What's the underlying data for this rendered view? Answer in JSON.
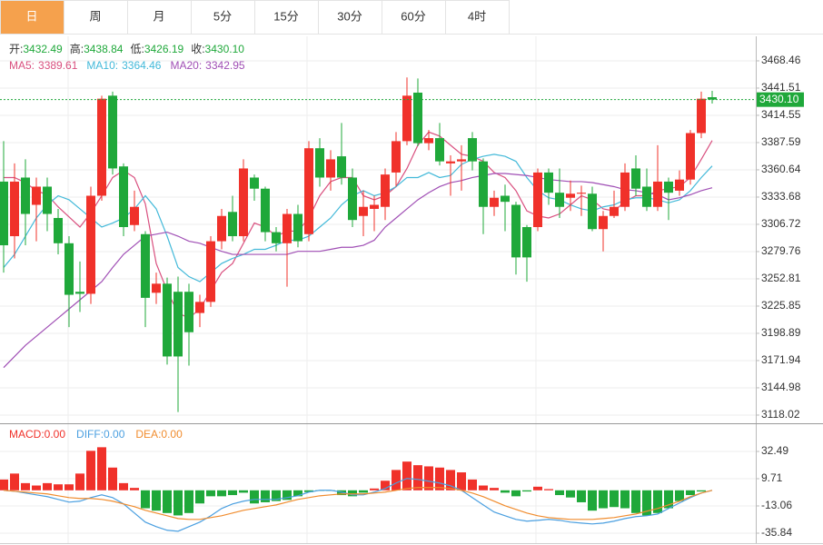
{
  "tabs": [
    "日",
    "周",
    "月",
    "5分",
    "15分",
    "30分",
    "60分",
    "4时"
  ],
  "active_tab": 0,
  "chart_data": [
    {
      "type": "candlestick",
      "legend": [
        {
          "label": "开:",
          "value": "3432.49"
        },
        {
          "label": "高:",
          "value": "3438.84"
        },
        {
          "label": "低:",
          "value": "3426.19"
        },
        {
          "label": "收:",
          "value": "3430.10"
        }
      ],
      "legend_value_color": "#1fa83a",
      "up_color": "#f0312a",
      "down_color": "#1fa83a",
      "open": [
        3349,
        3295,
        3353,
        3326,
        3344,
        3313,
        3288,
        3240,
        3238,
        3335,
        3434,
        3364,
        3306,
        3297,
        3239,
        3248,
        3240,
        3240,
        3219,
        3230,
        3290,
        3319,
        3295,
        3353,
        3342,
        3299,
        3288,
        3317,
        3297,
        3382,
        3353,
        3374,
        3353,
        3315,
        3322,
        3324,
        3358,
        3389,
        3437,
        3387,
        3392,
        3367,
        3369,
        3392,
        3369,
        3324,
        3335,
        3326,
        3304,
        3304,
        3358,
        3338,
        3333,
        3337,
        3337,
        3302,
        3315,
        3324,
        3362,
        3344,
        3324,
        3349,
        3340,
        3351,
        3397,
        3432.49
      ],
      "high": [
        3389,
        3367,
        3371,
        3353,
        3353,
        3322,
        3295,
        3270,
        3344,
        3434,
        3438,
        3367,
        3340,
        3300,
        3259,
        3254,
        3255,
        3248,
        3237,
        3295,
        3322,
        3335,
        3371,
        3356,
        3344,
        3304,
        3322,
        3326,
        3389,
        3392,
        3380,
        3407,
        3362,
        3340,
        3335,
        3362,
        3398,
        3452,
        3451,
        3400,
        3407,
        3375,
        3385,
        3398,
        3372,
        3340,
        3346,
        3329,
        3306,
        3362,
        3362,
        3362,
        3350,
        3345,
        3344,
        3320,
        3340,
        3367,
        3375,
        3362,
        3385,
        3353,
        3360,
        3400,
        3438,
        3438.84
      ],
      "low": [
        3259,
        3273,
        3286,
        3290,
        3300,
        3277,
        3205,
        3220,
        3228,
        3330,
        3356,
        3295,
        3300,
        3205,
        3228,
        3168,
        3121,
        3167,
        3205,
        3225,
        3282,
        3290,
        3290,
        3330,
        3290,
        3280,
        3245,
        3284,
        3290,
        3344,
        3340,
        3346,
        3304,
        3295,
        3300,
        3311,
        3344,
        3385,
        3384,
        3380,
        3365,
        3335,
        3340,
        3360,
        3297,
        3315,
        3300,
        3257,
        3250,
        3300,
        3326,
        3313,
        3320,
        3315,
        3300,
        3280,
        3313,
        3320,
        3335,
        3320,
        3320,
        3311,
        3335,
        3346,
        3392,
        3426.19
      ],
      "close": [
        3286,
        3349,
        3317,
        3344,
        3317,
        3288,
        3237,
        3238,
        3335,
        3431,
        3362,
        3304,
        3324,
        3234,
        3248,
        3176,
        3176,
        3200,
        3230,
        3290,
        3315,
        3295,
        3362,
        3342,
        3299,
        3288,
        3317,
        3290,
        3382,
        3353,
        3371,
        3353,
        3311,
        3324,
        3326,
        3356,
        3389,
        3434,
        3387,
        3392,
        3369,
        3369,
        3371,
        3369,
        3324,
        3333,
        3329,
        3274,
        3274,
        3358,
        3338,
        3324,
        3337,
        3338,
        3302,
        3315,
        3324,
        3358,
        3342,
        3324,
        3349,
        3338,
        3351,
        3397,
        3431,
        3430.1
      ],
      "series": [
        {
          "name": "MA5:",
          "color": "#d9507f",
          "value_label": "3389.61",
          "values": [
            3353,
            3353,
            3348,
            3340,
            3336,
            3324,
            3314,
            3304,
            3318,
            3335,
            3353,
            3360,
            3353,
            3327,
            3268,
            3241,
            3219,
            3214,
            3223,
            3241,
            3259,
            3268,
            3288,
            3308,
            3304,
            3295,
            3300,
            3300,
            3313,
            3335,
            3349,
            3353,
            3353,
            3335,
            3331,
            3335,
            3344,
            3362,
            3385,
            3398,
            3394,
            3385,
            3376,
            3374,
            3369,
            3358,
            3353,
            3340,
            3320,
            3315,
            3313,
            3317,
            3326,
            3335,
            3331,
            3322,
            3320,
            3329,
            3335,
            3335,
            3340,
            3342,
            3344,
            3353,
            3371,
            3389.61
          ]
        },
        {
          "name": "MA10:",
          "color": "#43b9d9",
          "value_label": "3364.46",
          "values": [
            3264,
            3277,
            3295,
            3313,
            3326,
            3335,
            3331,
            3322,
            3313,
            3304,
            3308,
            3313,
            3322,
            3335,
            3322,
            3295,
            3264,
            3255,
            3250,
            3259,
            3268,
            3273,
            3277,
            3282,
            3282,
            3286,
            3291,
            3291,
            3295,
            3304,
            3313,
            3326,
            3335,
            3340,
            3335,
            3338,
            3344,
            3353,
            3353,
            3358,
            3353,
            3355,
            3366,
            3371,
            3374,
            3376,
            3374,
            3369,
            3353,
            3340,
            3333,
            3331,
            3326,
            3322,
            3320,
            3324,
            3326,
            3331,
            3333,
            3333,
            3331,
            3328,
            3331,
            3340,
            3353,
            3364.46
          ]
        },
        {
          "name": "MA20:",
          "color": "#a04fb5",
          "value_label": "3342.95",
          "values": [
            3165,
            3176,
            3187,
            3196,
            3205,
            3214,
            3223,
            3232,
            3241,
            3250,
            3264,
            3277,
            3286,
            3295,
            3297,
            3299,
            3295,
            3290,
            3288,
            3284,
            3280,
            3277,
            3277,
            3277,
            3277,
            3277,
            3277,
            3280,
            3280,
            3280,
            3282,
            3284,
            3284,
            3286,
            3291,
            3304,
            3313,
            3322,
            3331,
            3338,
            3344,
            3348,
            3350,
            3353,
            3355,
            3357,
            3357,
            3356,
            3355,
            3353,
            3351,
            3350,
            3349,
            3349,
            3348,
            3346,
            3344,
            3341,
            3340,
            3338,
            3336,
            3331,
            3333,
            3336,
            3340,
            3342.95
          ]
        }
      ],
      "last_price": {
        "value": 3430.1,
        "label": "3430.10"
      },
      "ylim": [
        3110.8,
        3492.7
      ],
      "yticks": [
        3468.46,
        3441.51,
        3414.55,
        3387.59,
        3360.64,
        3333.68,
        3306.72,
        3279.76,
        3252.81,
        3225.85,
        3198.89,
        3171.94,
        3144.98,
        3118.02
      ],
      "grid": true
    },
    {
      "type": "macd",
      "up_color": "#f0312a",
      "down_color": "#1fa83a",
      "values": [
        9,
        14,
        6,
        4,
        6,
        5,
        5,
        14,
        33,
        36,
        19,
        6,
        2,
        -15,
        -17,
        -19,
        -21,
        -19,
        -11,
        -5,
        -5,
        -4,
        -2,
        -11,
        -10,
        -9,
        -8,
        -5,
        -1.5,
        -0.5,
        -0.5,
        -4,
        -5,
        -2,
        1.5,
        8,
        17,
        24,
        21,
        20,
        19,
        17,
        15,
        9,
        4,
        2,
        -2,
        -5,
        -1,
        3,
        1,
        -4,
        -6,
        -10,
        -17,
        -15,
        -14,
        -15,
        -19,
        -21,
        -19,
        -15,
        -9,
        -4,
        -1,
        0
      ],
      "legend": [
        {
          "name": "MACD:",
          "value": "0.00",
          "color": "#f0312a"
        },
        {
          "name": "DIFF:",
          "value": "0.00",
          "color": "#4a9fe0"
        },
        {
          "name": "DEA:",
          "value": "0.00",
          "color": "#f08c2e"
        }
      ],
      "series": [
        {
          "name": "DIFF",
          "color": "#4a9fe0",
          "values": [
            0,
            -0.8,
            -2.3,
            -3.8,
            -5.3,
            -7.6,
            -9.9,
            -9.1,
            -6.1,
            -3.8,
            -6.1,
            -11.4,
            -19.0,
            -26.6,
            -30.4,
            -33.4,
            -34.2,
            -30.4,
            -26.6,
            -21.3,
            -15.2,
            -11.4,
            -9.1,
            -7.6,
            -7.6,
            -7.6,
            -6.1,
            -4.6,
            -1.5,
            0,
            0,
            -1.5,
            -3.8,
            -3.8,
            -1.5,
            1.5,
            6.1,
            9.9,
            9.1,
            7.6,
            6.1,
            3.8,
            0,
            -6.1,
            -12.2,
            -18.2,
            -21.3,
            -24.3,
            -25.8,
            -25.1,
            -24.3,
            -25.1,
            -26.6,
            -27.4,
            -28.1,
            -27.4,
            -25.8,
            -23.6,
            -22.0,
            -21.3,
            -19.8,
            -15.2,
            -10.6,
            -6.1,
            -2.3,
            0
          ]
        },
        {
          "name": "DEA",
          "color": "#f08c2e",
          "values": [
            0,
            -0.8,
            -1.5,
            -2.3,
            -3.0,
            -4.6,
            -6.1,
            -6.8,
            -6.8,
            -7.6,
            -9.1,
            -11.4,
            -13.7,
            -16.7,
            -19.0,
            -21.3,
            -23.6,
            -24.3,
            -24.3,
            -22.8,
            -21.3,
            -19.0,
            -16.7,
            -15.2,
            -13.7,
            -12.2,
            -9.9,
            -7.6,
            -6.1,
            -4.6,
            -3.8,
            -3.0,
            -3.0,
            -3.0,
            -2.3,
            -1.5,
            0,
            1.5,
            2.3,
            2.3,
            2.3,
            1.5,
            0,
            -2.3,
            -5.3,
            -9.1,
            -12.9,
            -16.0,
            -19.0,
            -21.3,
            -22.8,
            -23.6,
            -24.3,
            -24.3,
            -24.3,
            -23.6,
            -22.8,
            -21.3,
            -19.8,
            -17.5,
            -15.2,
            -12.2,
            -9.1,
            -5.3,
            -2.3,
            0
          ]
        }
      ],
      "ylim": [
        -44.2,
        54.5
      ],
      "yticks": [
        32.49,
        9.71,
        -13.06,
        -35.84
      ],
      "grid": true
    }
  ]
}
